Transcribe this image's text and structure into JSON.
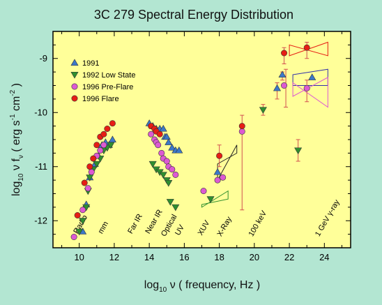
{
  "chart_data": {
    "type": "scatter",
    "title": "3C 279 Spectral Energy Distribution",
    "xlabel": {
      "base": "log",
      "sub": "10",
      "rest": " ν   ( frequency, Hz )"
    },
    "ylabel": {
      "log": "log",
      "sub10": "10",
      "nu": " ν f",
      "subnu": "ν",
      "open": "   ( erg s",
      "exp1": "-1",
      "cm": " cm",
      "exp2": "-2",
      "close": " )"
    },
    "xlim": [
      8.5,
      25.5
    ],
    "ylim": [
      -12.5,
      -8.5
    ],
    "xticks": [
      10,
      12,
      14,
      16,
      18,
      20,
      22,
      24
    ],
    "yticks": [
      -12,
      -11,
      -10,
      -9
    ],
    "grid": false,
    "legend_position": "top-left",
    "colors": {
      "background": "#b3e6d2",
      "plot_area": "#ffff99",
      "1991": "#3c78c8",
      "1992 Low State": "#2f8f2f",
      "1996 Pre-Flare": "#dc5ad2",
      "1996 Flare": "#e61e14",
      "error_bars": "#d25050"
    },
    "band_labels": [
      {
        "text": "Radio",
        "x": 9.9,
        "y": -12.25
      },
      {
        "text": "mm",
        "x": 11.3,
        "y": -12.25
      },
      {
        "text": "Far IR",
        "x": 13.0,
        "y": -12.25
      },
      {
        "text": "Near IR",
        "x": 14.0,
        "y": -12.25
      },
      {
        "text": "Optical",
        "x": 14.9,
        "y": -12.3
      },
      {
        "text": "UV",
        "x": 15.7,
        "y": -12.28
      },
      {
        "text": "XUV",
        "x": 17.0,
        "y": -12.28
      },
      {
        "text": "X-Ray",
        "x": 18.1,
        "y": -12.3
      },
      {
        "text": "100 keV",
        "x": 19.9,
        "y": -12.3
      },
      {
        "text": "1 GeV γ-ray",
        "x": 23.7,
        "y": -12.3
      }
    ],
    "series": [
      {
        "name": "1991",
        "marker": "triangle-up",
        "points": [
          [
            10.2,
            -12.2
          ],
          [
            10.4,
            -11.7
          ],
          [
            10.6,
            -11.2
          ],
          [
            10.9,
            -10.95
          ],
          [
            11.1,
            -10.8
          ],
          [
            11.3,
            -10.6
          ],
          [
            11.5,
            -10.55
          ],
          [
            11.7,
            -10.6
          ],
          [
            11.9,
            -10.5
          ],
          [
            14.0,
            -10.2
          ],
          [
            14.2,
            -10.25
          ],
          [
            14.4,
            -10.3
          ],
          [
            14.6,
            -10.3
          ],
          [
            14.8,
            -10.3
          ],
          [
            14.9,
            -10.45
          ],
          [
            15.0,
            -10.45
          ],
          [
            15.1,
            -10.55
          ],
          [
            15.3,
            -10.65
          ],
          [
            15.5,
            -10.7
          ],
          [
            15.7,
            -10.7
          ],
          [
            17.9,
            -11.1
          ],
          [
            21.3,
            -9.55
          ],
          [
            21.6,
            -9.3
          ],
          [
            23.3,
            -9.35
          ]
        ]
      },
      {
        "name": "1992 Low State",
        "marker": "triangle-down",
        "points": [
          [
            10.0,
            -12.2
          ],
          [
            10.2,
            -12.0
          ],
          [
            10.4,
            -11.75
          ],
          [
            10.5,
            -11.45
          ],
          [
            10.6,
            -11.2
          ],
          [
            10.8,
            -11.05
          ],
          [
            11.0,
            -10.95
          ],
          [
            11.2,
            -10.85
          ],
          [
            11.4,
            -10.7
          ],
          [
            11.6,
            -10.65
          ],
          [
            11.8,
            -10.6
          ],
          [
            14.2,
            -10.95
          ],
          [
            14.4,
            -11.05
          ],
          [
            14.6,
            -11.1
          ],
          [
            14.8,
            -11.15
          ],
          [
            15.0,
            -11.25
          ],
          [
            15.1,
            -11.3
          ],
          [
            15.2,
            -11.65
          ],
          [
            15.5,
            -11.75
          ],
          [
            17.5,
            -11.6
          ],
          [
            20.5,
            -9.95
          ],
          [
            22.5,
            -10.7
          ]
        ]
      },
      {
        "name": "1996 Pre-Flare",
        "marker": "circle",
        "points": [
          [
            9.7,
            -12.3
          ],
          [
            10.2,
            -11.8
          ],
          [
            10.5,
            -11.4
          ],
          [
            10.7,
            -11.1
          ],
          [
            11.0,
            -10.8
          ],
          [
            11.2,
            -10.7
          ],
          [
            11.4,
            -10.6
          ],
          [
            14.1,
            -10.4
          ],
          [
            14.3,
            -10.5
          ],
          [
            14.4,
            -10.55
          ],
          [
            14.5,
            -10.6
          ],
          [
            14.7,
            -10.75
          ],
          [
            14.8,
            -10.85
          ],
          [
            15.0,
            -10.9
          ],
          [
            15.1,
            -11.0
          ],
          [
            15.3,
            -11.05
          ],
          [
            15.5,
            -11.15
          ],
          [
            17.1,
            -11.45
          ],
          [
            17.9,
            -11.25
          ],
          [
            18.2,
            -11.2
          ],
          [
            19.3,
            -10.35
          ],
          [
            21.7,
            -9.5
          ],
          [
            23.0,
            -9.55
          ]
        ]
      },
      {
        "name": "1996 Flare",
        "marker": "circle",
        "points": [
          [
            9.9,
            -11.9
          ],
          [
            10.3,
            -11.3
          ],
          [
            10.6,
            -11.0
          ],
          [
            10.8,
            -10.85
          ],
          [
            11.0,
            -10.6
          ],
          [
            11.2,
            -10.45
          ],
          [
            11.4,
            -10.4
          ],
          [
            11.6,
            -10.3
          ],
          [
            11.9,
            -10.2
          ],
          [
            14.1,
            -10.25
          ],
          [
            14.3,
            -10.3
          ],
          [
            14.4,
            -10.35
          ],
          [
            14.6,
            -10.4
          ],
          [
            18.0,
            -10.8
          ],
          [
            19.3,
            -10.25
          ],
          [
            21.7,
            -8.9
          ],
          [
            23.0,
            -8.8
          ]
        ]
      }
    ],
    "error_bars": [
      {
        "x": 18.0,
        "y_low": -11.0,
        "y_high": -10.6
      },
      {
        "x": 19.3,
        "y_low": -11.8,
        "y_high": -10.05
      },
      {
        "x": 21.3,
        "y_low": -9.75,
        "y_high": -9.45
      },
      {
        "x": 21.6,
        "y_low": -9.4,
        "y_high": -9.25
      },
      {
        "x": 21.8,
        "y_low": -9.9,
        "y_high": -9.2
      },
      {
        "x": 21.7,
        "y_low": -9.1,
        "y_high": -8.8
      },
      {
        "x": 23.0,
        "y_low": -9.0,
        "y_high": -8.7
      },
      {
        "x": 23.0,
        "y_low": -9.8,
        "y_high": -9.4
      },
      {
        "x": 22.5,
        "y_low": -10.9,
        "y_high": -10.5
      },
      {
        "x": 20.5,
        "y_low": -10.05,
        "y_high": -9.85
      }
    ],
    "bowties": [
      {
        "series": "1992 Low State",
        "x1": 17.0,
        "x2": 18.5,
        "y1_low": -11.75,
        "y1_high": -11.7,
        "y2_low": -11.6,
        "y2_high": -11.45,
        "color": "#2f8f2f"
      },
      {
        "series": "1991",
        "x1": 17.9,
        "x2": 19.0,
        "y1_low": -11.25,
        "y1_high": -10.95,
        "y2_low": -10.75,
        "y2_high": -10.6,
        "color": "#222222"
      },
      {
        "series": "1991",
        "x1": 22.2,
        "x2": 24.2,
        "y1_low": -9.3,
        "y1_high": -9.5,
        "y2_low": -9.5,
        "y2_high": -9.2,
        "color": "#3333aa"
      },
      {
        "series": "1996 Pre-Flare",
        "x1": 22.2,
        "x2": 24.2,
        "y1_low": -9.7,
        "y1_high": -9.45,
        "y2_low": -9.9,
        "y2_high": -9.35,
        "color": "#dc5ad2"
      },
      {
        "series": "1996 Flare",
        "x1": 22.0,
        "x2": 24.2,
        "y1_low": -8.95,
        "y1_high": -8.75,
        "y2_low": -8.95,
        "y2_high": -8.7,
        "color": "#e61e14"
      }
    ]
  }
}
